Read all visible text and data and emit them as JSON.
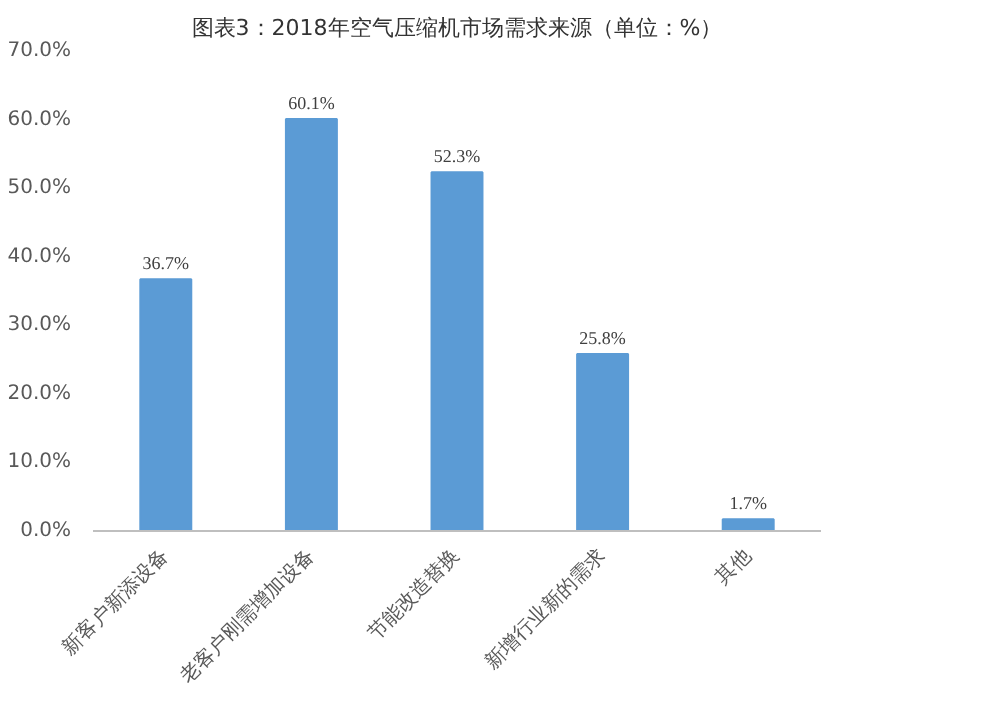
{
  "chart_data": {
    "type": "bar",
    "title": "图表3：2018年空气压缩机市场需求来源（单位：%）",
    "categories": [
      "新客户新添设备",
      "老客户刚需增加设备",
      "节能改造替换",
      "新增行业新的需求",
      "其他"
    ],
    "values": [
      36.7,
      60.1,
      52.3,
      25.8,
      1.7
    ],
    "value_labels": [
      "36.7%",
      "60.1%",
      "52.3%",
      "25.8%",
      "1.7%"
    ],
    "color": "#5b9bd5",
    "ylim": [
      0,
      70
    ],
    "yticks": [
      {
        "value": 0,
        "label": "0.0%"
      },
      {
        "value": 10,
        "label": "10.0%"
      },
      {
        "value": 20,
        "label": "20.0%"
      },
      {
        "value": 30,
        "label": "30.0%"
      },
      {
        "value": 40,
        "label": "40.0%"
      },
      {
        "value": 50,
        "label": "50.0%"
      },
      {
        "value": 60,
        "label": "60.0%"
      },
      {
        "value": 70,
        "label": "70.0%"
      }
    ],
    "grid": false
  }
}
